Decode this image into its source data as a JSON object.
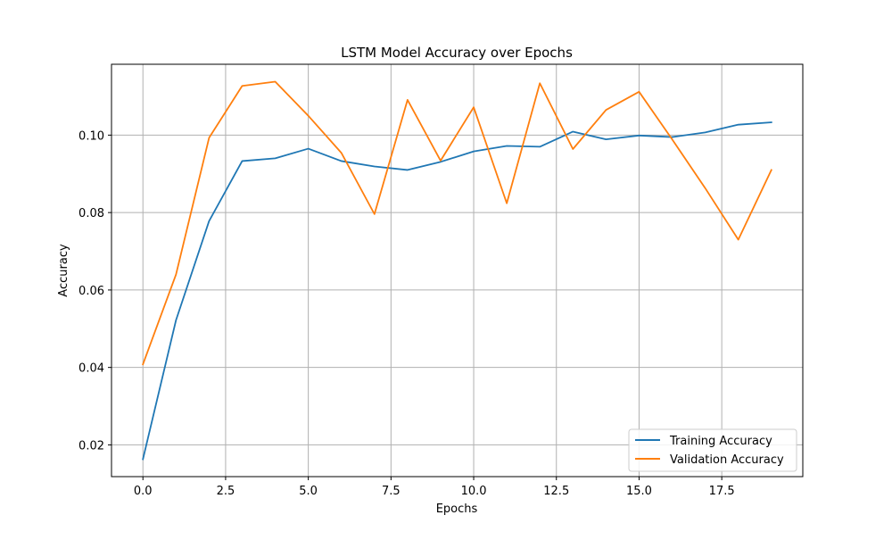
{
  "chart_data": {
    "type": "line",
    "title": "LSTM Model Accuracy over Epochs",
    "xlabel": "Epochs",
    "ylabel": "Accuracy",
    "xlim": [
      -0.95,
      19.95
    ],
    "ylim": [
      0.0118,
      0.1183
    ],
    "xticks": [
      0.0,
      2.5,
      5.0,
      7.5,
      10.0,
      12.5,
      15.0,
      17.5
    ],
    "xtick_labels": [
      "0.0",
      "2.5",
      "5.0",
      "7.5",
      "10.0",
      "12.5",
      "15.0",
      "17.5"
    ],
    "yticks": [
      0.02,
      0.04,
      0.06,
      0.08,
      0.1
    ],
    "ytick_labels": [
      "0.02",
      "0.04",
      "0.06",
      "0.08",
      "0.10"
    ],
    "grid": true,
    "legend_position": "bottom-right",
    "x": [
      0,
      1,
      2,
      3,
      4,
      5,
      6,
      7,
      8,
      9,
      10,
      11,
      12,
      13,
      14,
      15,
      16,
      17,
      18,
      19
    ],
    "series": [
      {
        "name": "Training Accuracy",
        "color": "#1f77b4",
        "values": [
          0.0163,
          0.0522,
          0.0778,
          0.0933,
          0.094,
          0.0965,
          0.0933,
          0.0919,
          0.091,
          0.0931,
          0.0958,
          0.0972,
          0.097,
          0.1009,
          0.0989,
          0.0999,
          0.0995,
          0.1007,
          0.1027,
          0.1033
        ]
      },
      {
        "name": "Validation Accuracy",
        "color": "#ff7f0e",
        "values": [
          0.0408,
          0.064,
          0.0993,
          0.1127,
          0.1138,
          0.105,
          0.0954,
          0.0796,
          0.1091,
          0.0934,
          0.1072,
          0.0824,
          0.1134,
          0.0964,
          0.1065,
          0.1112,
          0.0989,
          0.0863,
          0.073,
          0.091
        ]
      }
    ]
  }
}
